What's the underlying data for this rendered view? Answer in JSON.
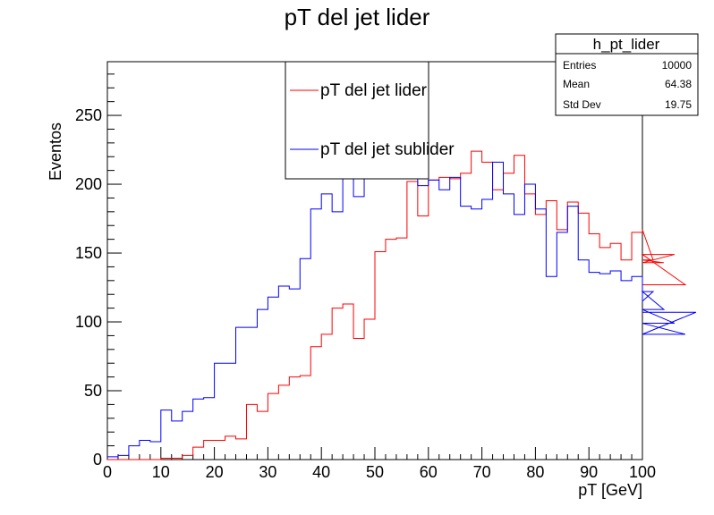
{
  "chart_data": {
    "type": "histogram",
    "title": "pT del jet lider",
    "xlabel": "pT [GeV]",
    "ylabel": "Eventos",
    "xlim": [
      0,
      100
    ],
    "ylim": [
      0,
      289
    ],
    "bin_width": 2,
    "x_ticks": [
      0,
      10,
      20,
      30,
      40,
      50,
      60,
      70,
      80,
      90,
      100
    ],
    "y_ticks": [
      0,
      50,
      100,
      150,
      200,
      250
    ],
    "grid": false,
    "legend_position": "top-center",
    "series": [
      {
        "name": "pT del jet lider",
        "color": "#ff0000",
        "values": [
          0,
          0,
          0,
          0,
          0,
          1,
          1,
          3,
          9,
          14,
          14,
          17,
          15,
          40,
          35,
          48,
          54,
          60,
          61,
          82,
          91,
          110,
          113,
          88,
          102,
          151,
          160,
          161,
          202,
          177,
          203,
          205,
          204,
          208,
          224,
          216,
          196,
          208,
          221,
          193,
          178,
          188,
          167,
          187,
          179,
          164,
          154,
          157,
          145,
          165,
          167,
          145,
          143,
          149,
          127
        ]
      },
      {
        "name": "pT del jet sublider",
        "color": "#0000ff",
        "values": [
          2,
          3,
          10,
          14,
          13,
          36,
          28,
          35,
          44,
          45,
          70,
          70,
          96,
          96,
          109,
          118,
          126,
          124,
          146,
          182,
          193,
          180,
          212,
          191,
          213,
          215,
          219,
          208,
          221,
          199,
          203,
          196,
          205,
          184,
          182,
          189,
          216,
          193,
          178,
          200,
          182,
          133,
          165,
          184,
          145,
          136,
          135,
          137,
          130,
          133,
          115,
          122,
          109,
          99,
          91,
          107
        ]
      }
    ],
    "stats_box": {
      "title": "h_pt_lider",
      "rows": [
        {
          "label": "Entries",
          "value": "10000"
        },
        {
          "label": "Mean",
          "value": "64.38"
        },
        {
          "label": "Std Dev",
          "value": "19.75"
        }
      ]
    }
  }
}
